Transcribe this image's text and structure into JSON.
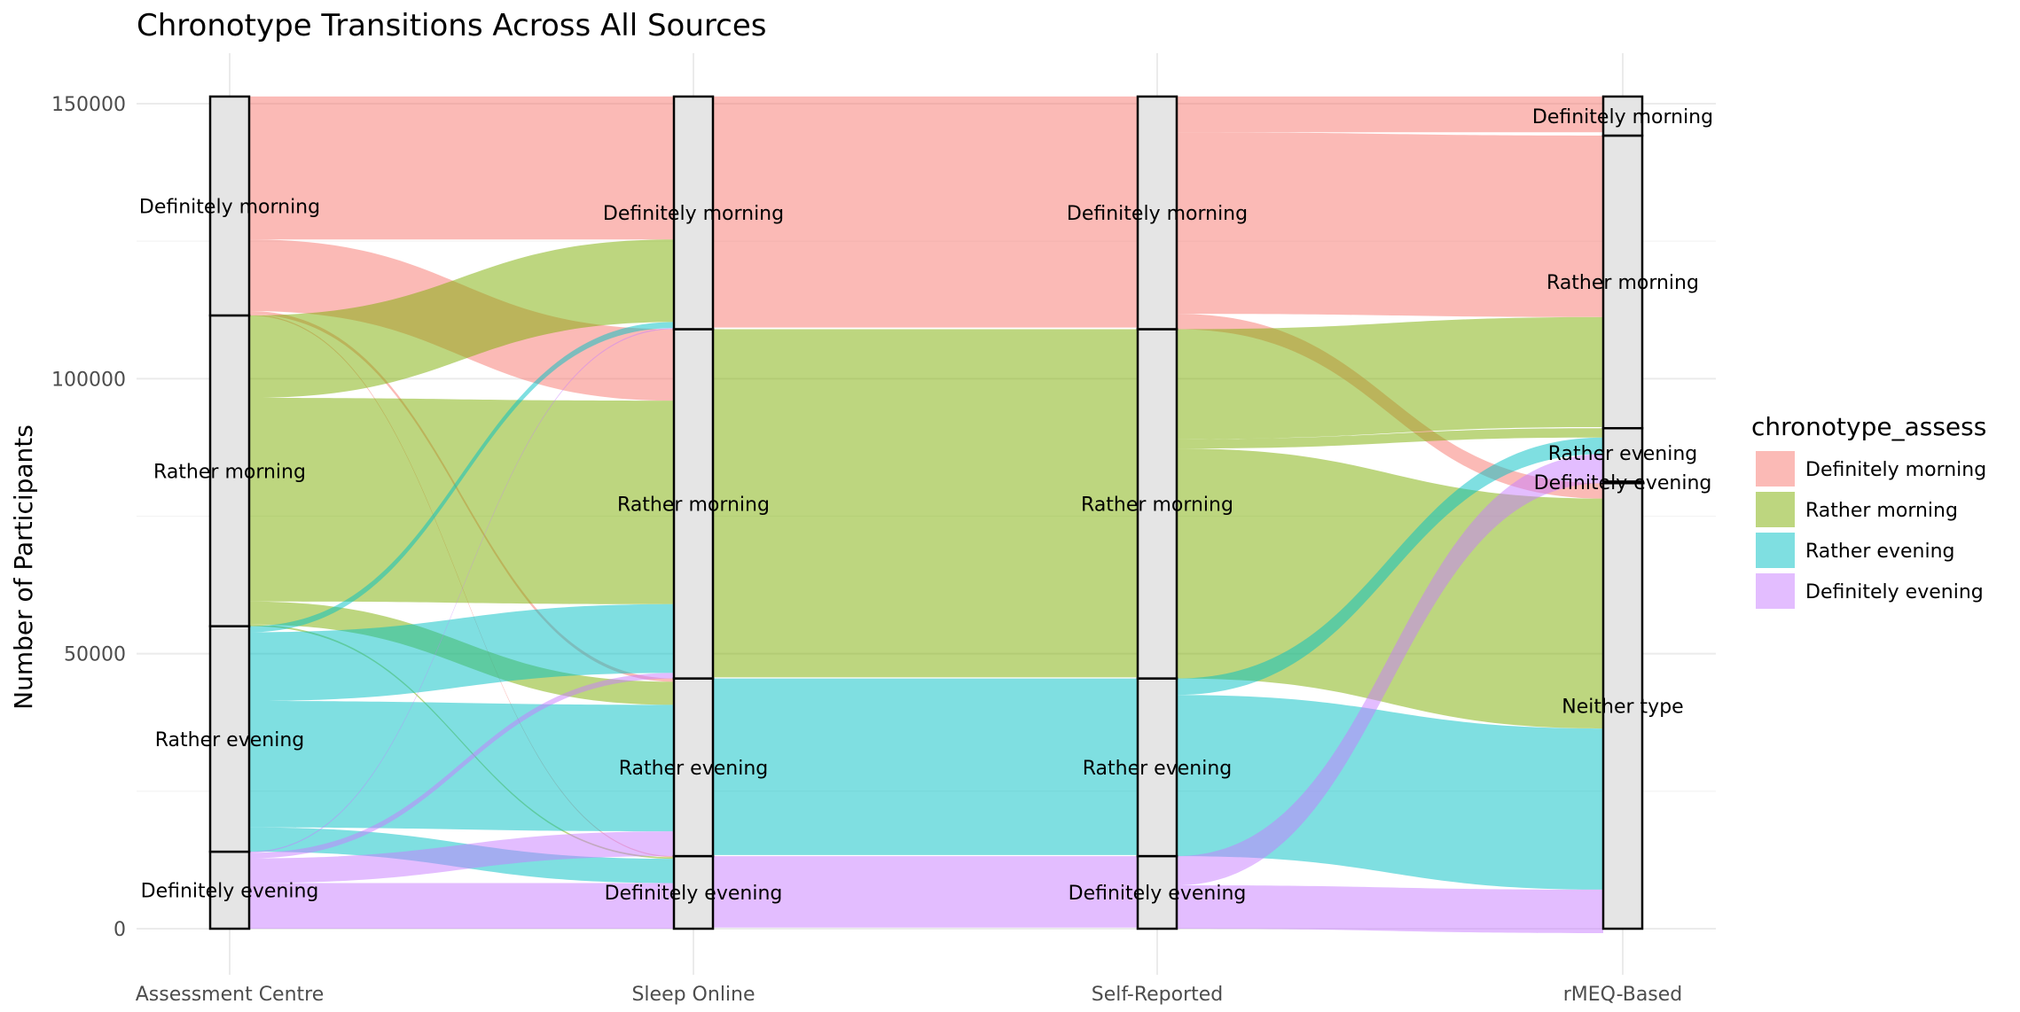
{
  "chart_data": {
    "type": "alluvial",
    "title": "Chronotype Transitions Across All Sources",
    "xlabel": "",
    "ylabel": "Number of Participants",
    "ylim": [
      0,
      155000
    ],
    "yticks": [
      0,
      50000,
      100000,
      150000
    ],
    "grid": true,
    "legend": {
      "title": "chronotype_assess",
      "placement": "right",
      "entries": [
        "Definitely morning",
        "Rather morning",
        "Rather evening",
        "Definitely evening"
      ]
    },
    "colors": {
      "Definitely morning": "#F8766D",
      "Rather morning": "#7CAE00",
      "Rather evening": "#00BFC4",
      "Definitely evening": "#C77CFF"
    },
    "axes": [
      {
        "name": "Assessment Centre",
        "strata": [
          {
            "label": "Definitely evening",
            "value": 14000
          },
          {
            "label": "Rather evening",
            "value": 41000
          },
          {
            "label": "Rather morning",
            "value": 56500
          },
          {
            "label": "Definitely morning",
            "value": 39800
          }
        ]
      },
      {
        "name": "Sleep Online",
        "strata": [
          {
            "label": "Definitely evening",
            "value": 13200
          },
          {
            "label": "Rather evening",
            "value": 32300
          },
          {
            "label": "Rather morning",
            "value": 63500
          },
          {
            "label": "Definitely morning",
            "value": 42300
          }
        ]
      },
      {
        "name": "Self-Reported",
        "strata": [
          {
            "label": "Definitely evening",
            "value": 13200
          },
          {
            "label": "Rather evening",
            "value": 32300
          },
          {
            "label": "Rather morning",
            "value": 63500
          },
          {
            "label": "Definitely morning",
            "value": 42300
          }
        ]
      },
      {
        "name": "rMEQ-Based",
        "strata": [
          {
            "label": "Neither type",
            "value": 81000
          },
          {
            "label": "Definitely evening",
            "value": 300
          },
          {
            "label": "Rather evening",
            "value": 9700
          },
          {
            "label": "Rather morning",
            "value": 53200
          },
          {
            "label": "Definitely morning",
            "value": 7100
          }
        ]
      }
    ],
    "flows": {
      "Assessment Centre-Sleep Online": [
        {
          "from": "Definitely morning",
          "to": "Definitely morning",
          "value": 26000,
          "group": "Definitely morning"
        },
        {
          "from": "Definitely morning",
          "to": "Rather morning",
          "value": 13000,
          "group": "Definitely morning"
        },
        {
          "from": "Definitely morning",
          "to": "Rather evening",
          "value": 600,
          "group": "Definitely morning"
        },
        {
          "from": "Definitely morning",
          "to": "Definitely evening",
          "value": 200,
          "group": "Definitely morning"
        },
        {
          "from": "Rather morning",
          "to": "Definitely morning",
          "value": 15000,
          "group": "Rather morning"
        },
        {
          "from": "Rather morning",
          "to": "Rather morning",
          "value": 37000,
          "group": "Rather morning"
        },
        {
          "from": "Rather morning",
          "to": "Rather evening",
          "value": 4200,
          "group": "Rather morning"
        },
        {
          "from": "Rather morning",
          "to": "Definitely evening",
          "value": 300,
          "group": "Rather morning"
        },
        {
          "from": "Rather evening",
          "to": "Definitely morning",
          "value": 1100,
          "group": "Rather evening"
        },
        {
          "from": "Rather evening",
          "to": "Rather morning",
          "value": 12500,
          "group": "Rather evening"
        },
        {
          "from": "Rather evening",
          "to": "Rather evening",
          "value": 23000,
          "group": "Rather evening"
        },
        {
          "from": "Rather evening",
          "to": "Definitely evening",
          "value": 4400,
          "group": "Rather evening"
        },
        {
          "from": "Definitely evening",
          "to": "Definitely morning",
          "value": 200,
          "group": "Definitely evening"
        },
        {
          "from": "Definitely evening",
          "to": "Rather morning",
          "value": 1000,
          "group": "Definitely evening"
        },
        {
          "from": "Definitely evening",
          "to": "Rather evening",
          "value": 4500,
          "group": "Definitely evening"
        },
        {
          "from": "Definitely evening",
          "to": "Definitely evening",
          "value": 8300,
          "group": "Definitely evening"
        }
      ],
      "Sleep Online-Self-Reported": [
        {
          "from": "Definitely morning",
          "to": "Definitely morning",
          "value": 42000,
          "group": "mixed"
        },
        {
          "from": "Rather morning",
          "to": "Rather morning",
          "value": 63300,
          "group": "mixed"
        },
        {
          "from": "Rather evening",
          "to": "Rather evening",
          "value": 32100,
          "group": "mixed"
        },
        {
          "from": "Definitely evening",
          "to": "Definitely evening",
          "value": 13000,
          "group": "mixed"
        }
      ],
      "Self-Reported-rMEQ-Based": [
        {
          "from": "Definitely morning",
          "to": "Definitely morning",
          "value": 6500,
          "group": "mixed"
        },
        {
          "from": "Definitely morning",
          "to": "Rather morning",
          "value": 33000,
          "group": "mixed"
        },
        {
          "from": "Definitely morning",
          "to": "Neither type",
          "value": 2800,
          "group": "mixed"
        },
        {
          "from": "Rather morning",
          "to": "Rather morning",
          "value": 20000,
          "group": "mixed"
        },
        {
          "from": "Rather morning",
          "to": "Rather evening",
          "value": 1700,
          "group": "mixed"
        },
        {
          "from": "Rather morning",
          "to": "Neither type",
          "value": 41800,
          "group": "mixed"
        },
        {
          "from": "Rather evening",
          "to": "Rather evening",
          "value": 3000,
          "group": "mixed"
        },
        {
          "from": "Rather evening",
          "to": "Neither type",
          "value": 29300,
          "group": "mixed"
        },
        {
          "from": "Definitely evening",
          "to": "Definitely evening",
          "value": 300,
          "group": "mixed"
        },
        {
          "from": "Definitely evening",
          "to": "Rather evening",
          "value": 5000,
          "group": "mixed"
        },
        {
          "from": "Definitely evening",
          "to": "Neither type",
          "value": 7900,
          "group": "mixed"
        }
      ]
    }
  }
}
